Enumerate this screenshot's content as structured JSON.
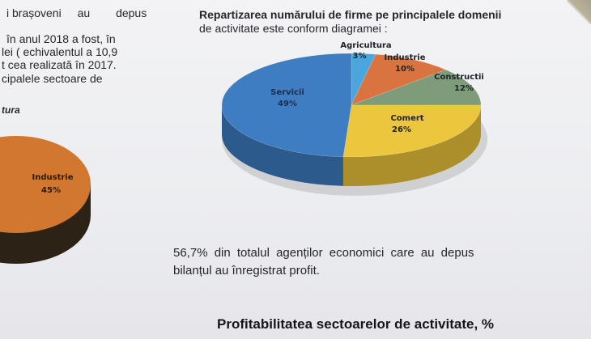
{
  "left_column": {
    "line1a": "i brașoveni",
    "line1b": "au",
    "line1c": "depus",
    "line2": "în anul 2018 a fost, în",
    "line3": "lei ( echivalentul a 10,9",
    "line4": "t cea realizată în 2017.",
    "line5": "cipalele sectoare de",
    "line6": "tura"
  },
  "chart_title": {
    "line1": "Repartizarea numărului de firme pe principalele domenii",
    "line2": "de activitate este conform diagramei :"
  },
  "profit_text": {
    "line1": "56,7% din totalul agenților economici care au depus",
    "line2": "bilanțul au înregistrat profit."
  },
  "bottom_heading": "Profitabilitatea sectoarelor de activitate, %",
  "chart_data": [
    {
      "type": "pie",
      "title": "",
      "style": "3d",
      "slices": [
        {
          "label": "Agricultura",
          "value_label": "3%",
          "value": 3,
          "color": "#4aa6dc"
        },
        {
          "label": "Industrie",
          "value_label": "10%",
          "value": 10,
          "color": "#d9733f"
        },
        {
          "label": "Constructii",
          "value_label": "12%",
          "value": 12,
          "color": "#7f9c7a"
        },
        {
          "label": "Comert",
          "value_label": "26%",
          "value": 26,
          "color": "#ecc63c"
        },
        {
          "label": "Servicii",
          "value_label": "49%",
          "value": 49,
          "color": "#3f7dc2"
        }
      ]
    },
    {
      "type": "pie",
      "title": "",
      "style": "3d",
      "partially_visible": true,
      "slices": [
        {
          "label": "Industrie",
          "value_label": "45%",
          "value": 45,
          "color": "#d2772f"
        }
      ]
    }
  ]
}
